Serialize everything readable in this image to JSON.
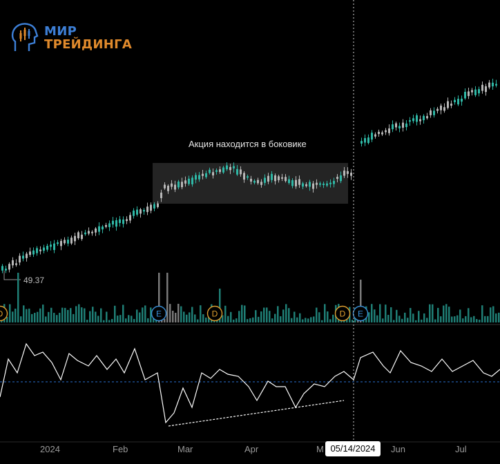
{
  "brand": {
    "line1": "МИР",
    "line2": "ТРЕЙДИНГА",
    "primary": "#3d7fd6",
    "accent": "#e08a2c"
  },
  "annotation": "Акция находится в боковике",
  "price_marker": "49.37",
  "crosshair_date": "05/14/2024",
  "x_labels": [
    "2024",
    "Feb",
    "Mar",
    "Apr",
    "M",
    "Jun",
    "Jul"
  ],
  "event_badges": [
    {
      "letter": "D",
      "color": "#e0a030"
    },
    {
      "letter": "E",
      "color": "#3a8fd6"
    },
    {
      "letter": "D",
      "color": "#e0a030"
    },
    {
      "letter": "D",
      "color": "#e0a030"
    },
    {
      "letter": "E",
      "color": "#3a8fd6"
    }
  ],
  "colors": {
    "up": "#2fb8a6",
    "down": "#b8b8b8",
    "volume": "#1f7f76",
    "oscillator": "#ffffff",
    "midline": "#2a6fd0"
  },
  "chart_data": {
    "type": "candlestick",
    "panes": [
      "price",
      "volume",
      "oscillator"
    ],
    "annotation": "Акция находится в боковике",
    "x_tick_labels": [
      "2024",
      "Feb",
      "Mar",
      "Apr",
      "M",
      "Jun",
      "Jul"
    ],
    "marked_price": 49.37,
    "crosshair": "05/14/2024",
    "grid": false
  }
}
